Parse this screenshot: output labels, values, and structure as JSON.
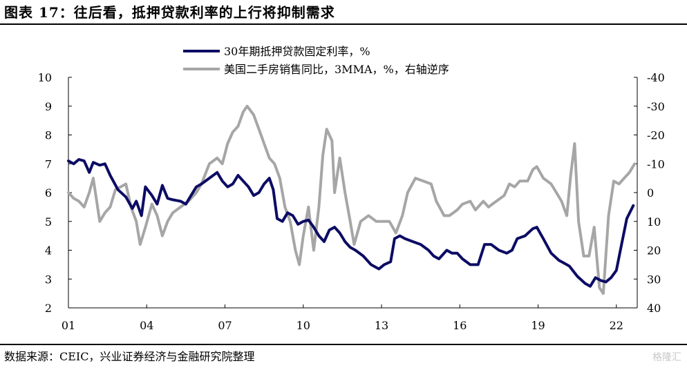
{
  "header": {
    "title": "图表 17：往后看，抵押贷款利率的上行将抑制需求"
  },
  "footer": {
    "source": "数据来源：CEIC，兴业证券经济与金融研究院整理",
    "watermark": "格隆汇"
  },
  "chart_data": {
    "type": "line",
    "x_tick_labels": [
      "01",
      "04",
      "07",
      "10",
      "13",
      "16",
      "19",
      "22"
    ],
    "x_tick_years": [
      2001,
      2004,
      2007,
      2010,
      2013,
      2016,
      2019,
      2022
    ],
    "x_range": [
      2001,
      2022.8
    ],
    "left_axis": {
      "ylim": [
        2,
        10
      ],
      "ticks": [
        2,
        3,
        4,
        5,
        6,
        7,
        8,
        9,
        10
      ]
    },
    "right_axis": {
      "ylim": [
        40,
        -40
      ],
      "ticks": [
        -40,
        -30,
        -20,
        -10,
        0,
        10,
        20,
        30,
        40
      ],
      "reversed": true
    },
    "grid": false,
    "legend_placement": "top-center",
    "series": [
      {
        "name": "30年期抵押贷款固定利率，%",
        "axis": "left",
        "color": "#0c0c64",
        "points": [
          [
            2001.0,
            7.1
          ],
          [
            2001.2,
            7.0
          ],
          [
            2001.4,
            7.15
          ],
          [
            2001.6,
            7.1
          ],
          [
            2001.8,
            6.7
          ],
          [
            2001.95,
            7.05
          ],
          [
            2002.2,
            6.95
          ],
          [
            2002.4,
            7.0
          ],
          [
            2002.6,
            6.6
          ],
          [
            2002.9,
            6.1
          ],
          [
            2003.2,
            5.85
          ],
          [
            2003.45,
            5.45
          ],
          [
            2003.6,
            5.7
          ],
          [
            2003.8,
            5.2
          ],
          [
            2003.95,
            6.2
          ],
          [
            2004.2,
            5.9
          ],
          [
            2004.4,
            5.6
          ],
          [
            2004.6,
            6.25
          ],
          [
            2004.8,
            5.8
          ],
          [
            2005.0,
            5.75
          ],
          [
            2005.3,
            5.7
          ],
          [
            2005.5,
            5.6
          ],
          [
            2005.7,
            5.9
          ],
          [
            2005.9,
            6.2
          ],
          [
            2006.1,
            6.3
          ],
          [
            2006.4,
            6.5
          ],
          [
            2006.7,
            6.7
          ],
          [
            2006.9,
            6.4
          ],
          [
            2007.1,
            6.2
          ],
          [
            2007.3,
            6.3
          ],
          [
            2007.5,
            6.6
          ],
          [
            2007.7,
            6.4
          ],
          [
            2007.9,
            6.2
          ],
          [
            2008.1,
            5.9
          ],
          [
            2008.3,
            6.0
          ],
          [
            2008.5,
            6.3
          ],
          [
            2008.7,
            6.5
          ],
          [
            2008.85,
            6.1
          ],
          [
            2009.0,
            5.1
          ],
          [
            2009.2,
            5.0
          ],
          [
            2009.4,
            5.3
          ],
          [
            2009.6,
            5.2
          ],
          [
            2009.8,
            4.9
          ],
          [
            2010.0,
            5.0
          ],
          [
            2010.2,
            5.05
          ],
          [
            2010.4,
            4.8
          ],
          [
            2010.6,
            4.5
          ],
          [
            2010.8,
            4.3
          ],
          [
            2011.0,
            4.7
          ],
          [
            2011.2,
            4.8
          ],
          [
            2011.4,
            4.6
          ],
          [
            2011.6,
            4.3
          ],
          [
            2011.8,
            4.1
          ],
          [
            2012.0,
            4.0
          ],
          [
            2012.3,
            3.8
          ],
          [
            2012.6,
            3.5
          ],
          [
            2012.9,
            3.35
          ],
          [
            2013.1,
            3.5
          ],
          [
            2013.35,
            3.6
          ],
          [
            2013.5,
            4.4
          ],
          [
            2013.7,
            4.5
          ],
          [
            2013.9,
            4.4
          ],
          [
            2014.2,
            4.3
          ],
          [
            2014.5,
            4.2
          ],
          [
            2014.8,
            4.0
          ],
          [
            2015.0,
            3.8
          ],
          [
            2015.2,
            3.7
          ],
          [
            2015.5,
            4.0
          ],
          [
            2015.7,
            3.9
          ],
          [
            2015.9,
            3.9
          ],
          [
            2016.1,
            3.7
          ],
          [
            2016.4,
            3.5
          ],
          [
            2016.7,
            3.5
          ],
          [
            2016.95,
            4.2
          ],
          [
            2017.2,
            4.2
          ],
          [
            2017.5,
            4.0
          ],
          [
            2017.8,
            3.9
          ],
          [
            2018.0,
            4.0
          ],
          [
            2018.2,
            4.4
          ],
          [
            2018.5,
            4.5
          ],
          [
            2018.8,
            4.75
          ],
          [
            2018.95,
            4.8
          ],
          [
            2019.2,
            4.4
          ],
          [
            2019.5,
            3.9
          ],
          [
            2019.8,
            3.65
          ],
          [
            2020.0,
            3.55
          ],
          [
            2020.2,
            3.45
          ],
          [
            2020.5,
            3.1
          ],
          [
            2020.8,
            2.85
          ],
          [
            2021.0,
            2.75
          ],
          [
            2021.2,
            3.05
          ],
          [
            2021.4,
            2.95
          ],
          [
            2021.6,
            2.9
          ],
          [
            2021.8,
            3.05
          ],
          [
            2022.0,
            3.3
          ],
          [
            2022.2,
            4.2
          ],
          [
            2022.4,
            5.1
          ],
          [
            2022.65,
            5.55
          ]
        ]
      },
      {
        "name": "美国二手房销售同比，3MMA，%，右轴逆序",
        "axis": "right",
        "color": "#a6a6a6",
        "points": [
          [
            2001.0,
            0
          ],
          [
            2001.2,
            2
          ],
          [
            2001.4,
            3
          ],
          [
            2001.6,
            5
          ],
          [
            2001.8,
            0
          ],
          [
            2001.95,
            -5
          ],
          [
            2002.2,
            10
          ],
          [
            2002.4,
            7
          ],
          [
            2002.6,
            5
          ],
          [
            2002.8,
            -1
          ],
          [
            2003.0,
            -2
          ],
          [
            2003.2,
            -3
          ],
          [
            2003.4,
            5
          ],
          [
            2003.6,
            10
          ],
          [
            2003.75,
            18
          ],
          [
            2003.95,
            12
          ],
          [
            2004.2,
            4
          ],
          [
            2004.4,
            8
          ],
          [
            2004.6,
            15
          ],
          [
            2004.8,
            10
          ],
          [
            2005.0,
            7
          ],
          [
            2005.3,
            5
          ],
          [
            2005.6,
            3
          ],
          [
            2005.9,
            0
          ],
          [
            2006.1,
            -3
          ],
          [
            2006.4,
            -10
          ],
          [
            2006.7,
            -12
          ],
          [
            2006.9,
            -10
          ],
          [
            2007.1,
            -17
          ],
          [
            2007.3,
            -21
          ],
          [
            2007.5,
            -23
          ],
          [
            2007.7,
            -28
          ],
          [
            2007.85,
            -30
          ],
          [
            2008.1,
            -27
          ],
          [
            2008.3,
            -22
          ],
          [
            2008.5,
            -17
          ],
          [
            2008.7,
            -12
          ],
          [
            2008.9,
            -10
          ],
          [
            2009.1,
            -5
          ],
          [
            2009.3,
            5
          ],
          [
            2009.5,
            10
          ],
          [
            2009.7,
            20
          ],
          [
            2009.85,
            25
          ],
          [
            2010.0,
            15
          ],
          [
            2010.2,
            5
          ],
          [
            2010.4,
            20
          ],
          [
            2010.6,
            5
          ],
          [
            2010.75,
            -13
          ],
          [
            2010.9,
            -22
          ],
          [
            2011.1,
            -18
          ],
          [
            2011.2,
            0
          ],
          [
            2011.4,
            -12
          ],
          [
            2011.6,
            0
          ],
          [
            2011.8,
            10
          ],
          [
            2011.95,
            18
          ],
          [
            2012.2,
            10
          ],
          [
            2012.5,
            8
          ],
          [
            2012.8,
            10
          ],
          [
            2013.0,
            10
          ],
          [
            2013.3,
            10
          ],
          [
            2013.55,
            14
          ],
          [
            2013.8,
            8
          ],
          [
            2014.0,
            0
          ],
          [
            2014.3,
            -5
          ],
          [
            2014.6,
            -4
          ],
          [
            2014.9,
            -3
          ],
          [
            2015.1,
            3
          ],
          [
            2015.4,
            8
          ],
          [
            2015.6,
            8
          ],
          [
            2015.9,
            6
          ],
          [
            2016.1,
            4
          ],
          [
            2016.4,
            3
          ],
          [
            2016.6,
            6
          ],
          [
            2016.9,
            3
          ],
          [
            2017.1,
            5
          ],
          [
            2017.4,
            3
          ],
          [
            2017.7,
            1
          ],
          [
            2017.9,
            -3
          ],
          [
            2018.1,
            -2
          ],
          [
            2018.3,
            -4
          ],
          [
            2018.6,
            -4
          ],
          [
            2018.8,
            -8
          ],
          [
            2018.95,
            -9
          ],
          [
            2019.2,
            -5
          ],
          [
            2019.5,
            -3
          ],
          [
            2019.7,
            0
          ],
          [
            2019.9,
            3
          ],
          [
            2020.1,
            8
          ],
          [
            2020.25,
            -6
          ],
          [
            2020.4,
            -17
          ],
          [
            2020.55,
            10
          ],
          [
            2020.75,
            22
          ],
          [
            2020.95,
            22
          ],
          [
            2021.15,
            12
          ],
          [
            2021.35,
            33
          ],
          [
            2021.5,
            35
          ],
          [
            2021.7,
            8
          ],
          [
            2021.9,
            -4
          ],
          [
            2022.1,
            -3
          ],
          [
            2022.3,
            -5
          ],
          [
            2022.5,
            -7
          ],
          [
            2022.7,
            -10
          ]
        ]
      }
    ]
  }
}
